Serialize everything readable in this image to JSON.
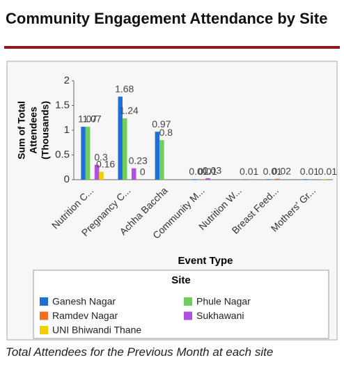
{
  "chart_data": {
    "type": "bar",
    "title": "Community Engagement Attendance by Site",
    "caption": "Total Attendees for the Previous Month at each site",
    "xlabel": "Event Type",
    "ylabel_lines": [
      "Sum of Total",
      "Attendees",
      "(Thousands)"
    ],
    "legend_title": "Site",
    "categories": [
      "Nutrition C...",
      "Pregnancy C...",
      "Achha Baccha",
      "Community M...",
      "Nutrition W...",
      "Breast Feed...",
      "Mothers' Gr..."
    ],
    "series": [
      {
        "name": "Ganesh Nagar",
        "color": "#1f6fd6",
        "values": [
          1.07,
          1.68,
          0.97,
          0.01,
          null,
          0.01,
          0.01
        ]
      },
      {
        "name": "Phule Nagar",
        "color": "#6fcf5a",
        "values": [
          1.07,
          1.24,
          0.8,
          null,
          null,
          null,
          null
        ]
      },
      {
        "name": "Ramdev Nagar",
        "color": "#f07020",
        "values": [
          null,
          null,
          null,
          0.01,
          null,
          0.02,
          null
        ]
      },
      {
        "name": "Sukhawani",
        "color": "#b050e0",
        "values": [
          0.3,
          0.23,
          null,
          0.03,
          0.01,
          null,
          null
        ]
      },
      {
        "name": "UNI Bhiwandi Thane",
        "color": "#f0d000",
        "values": [
          0.16,
          0,
          null,
          null,
          null,
          null,
          0.01
        ]
      }
    ],
    "ylim": [
      0,
      2
    ],
    "yticks": [
      0,
      0.5,
      1,
      1.5,
      2
    ],
    "grid": false
  }
}
